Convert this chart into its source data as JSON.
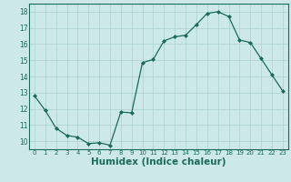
{
  "x": [
    0,
    1,
    2,
    3,
    4,
    5,
    6,
    7,
    8,
    9,
    10,
    11,
    12,
    13,
    14,
    15,
    16,
    17,
    18,
    19,
    20,
    21,
    22,
    23
  ],
  "y": [
    12.8,
    11.9,
    10.8,
    10.35,
    10.25,
    9.85,
    9.9,
    9.75,
    11.8,
    11.75,
    14.85,
    15.05,
    16.2,
    16.45,
    16.55,
    17.2,
    17.9,
    18.0,
    17.7,
    16.25,
    16.1,
    15.1,
    14.1,
    13.1
  ],
  "line_color": "#1a6b5a",
  "marker": "D",
  "marker_size": 2,
  "bg_color": "#cce8e8",
  "grid_color": "#b0d4d4",
  "tick_color": "#1a6b5a",
  "xlabel": "Humidex (Indice chaleur)",
  "xlabel_fontsize": 7.5,
  "ylim": [
    9.5,
    18.5
  ],
  "xlim": [
    -0.5,
    23.5
  ],
  "yticks": [
    10,
    11,
    12,
    13,
    14,
    15,
    16,
    17,
    18
  ],
  "xticks": [
    0,
    1,
    2,
    3,
    4,
    5,
    6,
    7,
    8,
    9,
    10,
    11,
    12,
    13,
    14,
    15,
    16,
    17,
    18,
    19,
    20,
    21,
    22,
    23
  ],
  "xtick_labels": [
    "0",
    "1",
    "2",
    "3",
    "4",
    "5",
    "6",
    "7",
    "8",
    "9",
    "10",
    "11",
    "12",
    "13",
    "14",
    "15",
    "16",
    "17",
    "18",
    "19",
    "20",
    "21",
    "22",
    "23"
  ]
}
